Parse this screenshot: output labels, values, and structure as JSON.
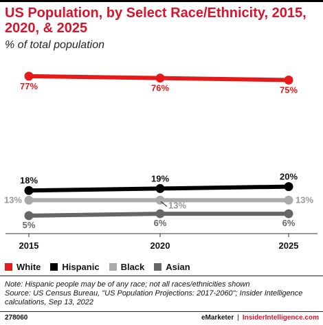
{
  "title": "US Population, by Select Race/Ethnicity, 2015, 2020, & 2025",
  "subtitle": "% of total population",
  "chart_data": {
    "type": "line",
    "title": "US Population, by Select Race/Ethnicity, 2015, 2020, & 2025",
    "subtitle": "% of total population",
    "categories": [
      "2015",
      "2020",
      "2025"
    ],
    "ylim": [
      0,
      80
    ],
    "grid": false,
    "legend_placement": "bottom-left",
    "series": [
      {
        "name": "White",
        "color": "#e51a1a",
        "values": [
          77,
          76,
          75
        ],
        "labels": [
          "77%",
          "76%",
          "75%"
        ]
      },
      {
        "name": "Hispanic",
        "color": "#000000",
        "values": [
          18,
          19,
          20
        ],
        "labels": [
          "18%",
          "19%",
          "20%"
        ]
      },
      {
        "name": "Black",
        "color": "#aaaaaa",
        "values": [
          13,
          13,
          13
        ],
        "labels": [
          "13%",
          "13%",
          "13%"
        ]
      },
      {
        "name": "Asian",
        "color": "#666666",
        "values": [
          5,
          6,
          6
        ],
        "labels": [
          "5%",
          "6%",
          "6%"
        ]
      }
    ]
  },
  "note": "Note: Hispanic people may be of any race; not all races/ethnicities shown",
  "source": "Source: US Census Bureau, \"US Population Projections: 2017-2060\"; Insider Intelligence calculations, Sep 13, 2022",
  "footer": {
    "chart_id": "278060",
    "brand_left": "eMarketer",
    "separator": "|",
    "brand_right": "InsiderIntelligence.com"
  }
}
